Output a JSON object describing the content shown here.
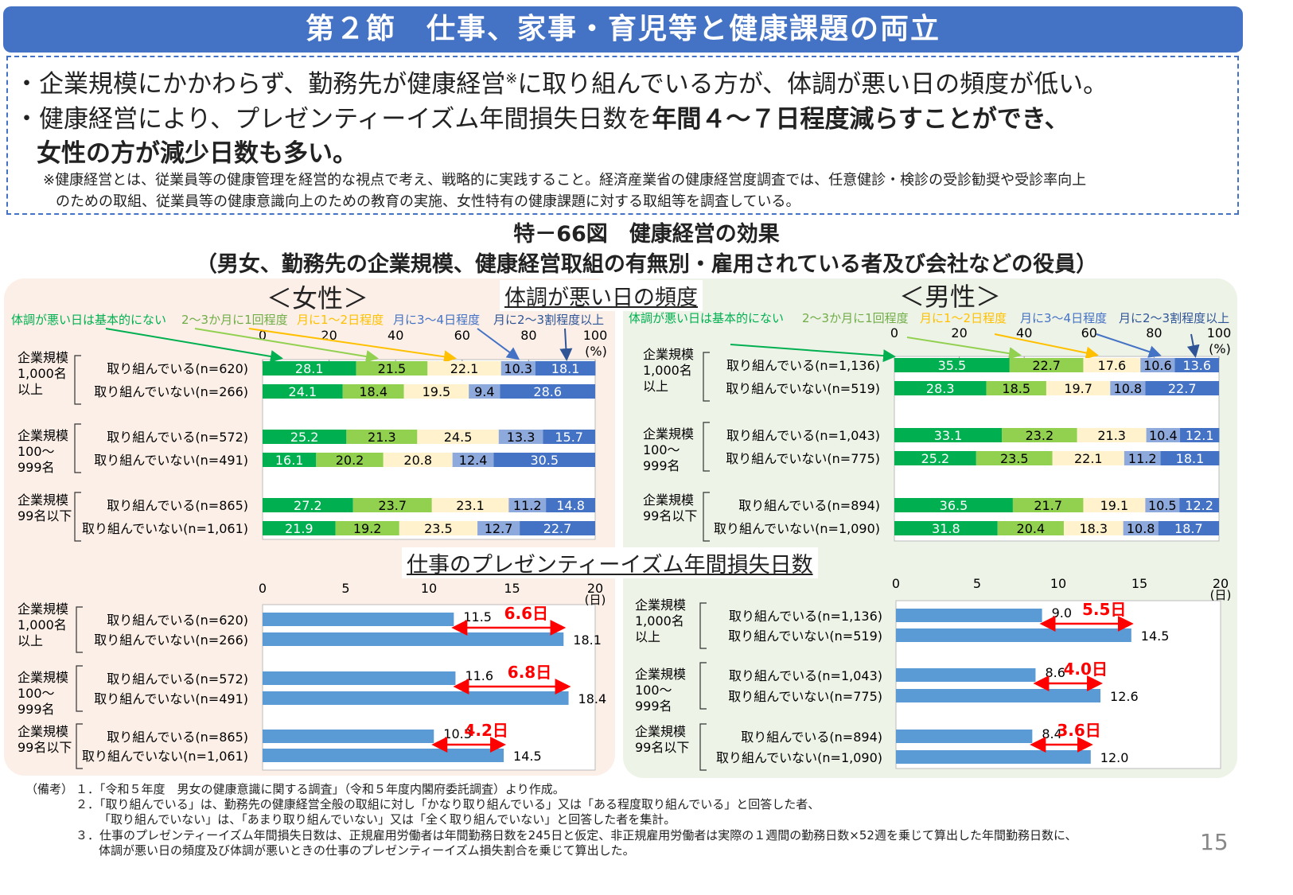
{
  "header": {
    "title": "第２節　仕事、家事・育児等と健康課題の両立"
  },
  "summary": {
    "bullet1_pre": "・企業規模にかかわらず、勤務先が健康経営",
    "bullet1_mark": "※",
    "bullet1_post": "に取り組んでいる方が、体調が悪い日の頻度が低い。",
    "bullet2_pre": "・健康経営により、プレゼンティーイズム年間損失日数を",
    "bullet2_bold": "年間４～７日程度減らすことができ、",
    "bullet2_line2": "女性の方が減少日数も多い。",
    "note_line1": "※健康経営とは、従業員等の健康管理を経営的な視点で考え、戦略的に実践すること。経済産業省の健康経営度調査では、任意健診・検診の受診勧奨や受診率向上",
    "note_line2": "のための取組、従業員等の健康意識向上のための教育の実施、女性特有の健康課題に対する取組等を調査している。"
  },
  "figure": {
    "title": "特－66図　健康経営の効果",
    "subtitle": "（男女、勤務先の企業規模、健康経営取組の有無別・雇用されている者及び会社などの役員）",
    "section1": "体調が悪い日の頻度",
    "section2": "仕事のプレゼンティーイズム年間損失日数",
    "women": "＜女性＞",
    "men": "＜男性＞"
  },
  "colors": {
    "header": "#4472C4",
    "seg1": "#00B050",
    "seg2": "#92D050",
    "seg3": "#FFF2CC",
    "seg4": "#8EA9DB",
    "seg5": "#4472C4",
    "daybar": "#5B9BD5",
    "reduction": "#FF0000",
    "women_bg": "#FCEFE7",
    "men_bg": "#EEF3E8"
  },
  "groups": [
    [
      "企業規模",
      "1,000名",
      "以上"
    ],
    [
      "企業規模",
      "100～",
      "999名"
    ],
    [
      "企業規模",
      "99名以下"
    ]
  ],
  "chart_data": [
    {
      "type": "bar",
      "stacked": true,
      "orientation": "horizontal",
      "panel": "＜女性＞",
      "legend": [
        "体調が悪い日は基本的にない",
        "2～3か月に1回程度",
        "月に1～2日程度",
        "月に3～4日程度",
        "月に2～3割程度以上"
      ],
      "xlim": [
        0,
        100
      ],
      "xticks": [
        "0",
        "20",
        "40",
        "60",
        "80",
        "100"
      ],
      "unit": "(%)",
      "categories": [
        "取り組んでいる(n=620)",
        "取り組んでいない(n=266)",
        "取り組んでいる(n=572)",
        "取り組んでいない(n=491)",
        "取り組んでいる(n=865)",
        "取り組んでいない(n=1,061)"
      ],
      "values": [
        [
          28.1,
          21.5,
          22.1,
          10.3,
          18.1
        ],
        [
          24.1,
          18.4,
          19.5,
          9.4,
          28.6
        ],
        [
          25.2,
          21.3,
          24.5,
          13.3,
          15.7
        ],
        [
          16.1,
          20.2,
          20.8,
          12.4,
          30.5
        ],
        [
          27.2,
          23.7,
          23.1,
          11.2,
          14.8
        ],
        [
          21.9,
          19.2,
          23.5,
          12.7,
          22.7
        ]
      ]
    },
    {
      "type": "bar",
      "stacked": true,
      "orientation": "horizontal",
      "panel": "＜男性＞",
      "legend": [
        "体調が悪い日は基本的にない",
        "2～3か月に1回程度",
        "月に1～2日程度",
        "月に3～4日程度",
        "月に2～3割程度以上"
      ],
      "xlim": [
        0,
        100
      ],
      "xticks": [
        "0",
        "20",
        "40",
        "60",
        "80",
        "100"
      ],
      "unit": "(%)",
      "categories": [
        "取り組んでいる(n=1,136)",
        "取り組んでいない(n=519)",
        "取り組んでいる(n=1,043)",
        "取り組んでいない(n=775)",
        "取り組んでいる(n=894)",
        "取り組んでいない(n=1,090)"
      ],
      "values": [
        [
          35.5,
          22.7,
          17.6,
          10.6,
          13.6
        ],
        [
          28.3,
          18.5,
          19.7,
          10.8,
          22.7
        ],
        [
          33.1,
          23.2,
          21.3,
          10.4,
          12.1
        ],
        [
          25.2,
          23.5,
          22.1,
          11.2,
          18.1
        ],
        [
          36.5,
          21.7,
          19.1,
          10.5,
          12.2
        ],
        [
          31.8,
          20.4,
          18.3,
          10.8,
          18.7
        ]
      ]
    },
    {
      "type": "bar",
      "orientation": "horizontal",
      "panel": "＜女性＞",
      "xlim": [
        0,
        20
      ],
      "xticks": [
        "0",
        "5",
        "10",
        "15",
        "20"
      ],
      "unit": "(日)",
      "categories": [
        "取り組んでいる(n=620)",
        "取り組んでいない(n=266)",
        "取り組んでいる(n=572)",
        "取り組んでいない(n=491)",
        "取り組んでいる(n=865)",
        "取り組んでいない(n=1,061)"
      ],
      "values": [
        11.5,
        18.1,
        11.6,
        18.4,
        10.3,
        14.5
      ],
      "labels": [
        "11.5",
        "18.1",
        "11.6",
        "18.4",
        "10.3",
        "14.5"
      ],
      "reductions": [
        "6.6日",
        "6.8日",
        "4.2日"
      ]
    },
    {
      "type": "bar",
      "orientation": "horizontal",
      "panel": "＜男性＞",
      "xlim": [
        0,
        20
      ],
      "xticks": [
        "0",
        "5",
        "10",
        "15",
        "20"
      ],
      "unit": "(日)",
      "categories": [
        "取り組んでいる(n=1,136)",
        "取り組んでいない(n=519)",
        "取り組んでいる(n=1,043)",
        "取り組んでいない(n=775)",
        "取り組んでいる(n=894)",
        "取り組んでいない(n=1,090)"
      ],
      "values": [
        9.0,
        14.5,
        8.6,
        12.6,
        8.4,
        12.0
      ],
      "labels": [
        "9.0",
        "14.5",
        "8.6",
        "12.6",
        "8.4",
        "12.0"
      ],
      "reductions": [
        "5.5日",
        "4.0日",
        "3.6日"
      ]
    }
  ],
  "footnotes": {
    "label": "（備考）",
    "n1": "１．「令和５年度　男女の健康意識に関する調査」（令和５年度内閣府委託調査）より作成。",
    "n2a": "２．「取り組んでいる」は、勤務先の健康経営全般の取組に対し「かなり取り組んでいる」又は「ある程度取り組んでいる」と回答した者、",
    "n2b": "「取り組んでいない」は、「あまり取り組んでいない」又は「全く取り組んでいない」と回答した者を集計。",
    "n3a": "３．仕事のプレゼンティーイズム年間損失日数は、正規雇用労働者は年間勤務日数を245日と仮定、非正規雇用労働者は実際の１週間の勤務日数×52週を乗じて算出した年間勤務日数に、",
    "n3b": "体調が悪い日の頻度及び体調が悪いときの仕事のプレゼンティーイズム損失割合を乗じて算出した。"
  },
  "page_number": "15"
}
